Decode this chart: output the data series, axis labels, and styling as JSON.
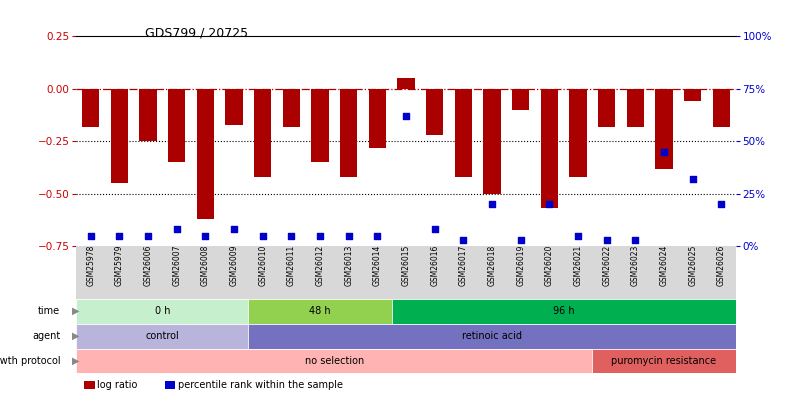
{
  "title": "GDS799 / 20725",
  "samples": [
    "GSM25978",
    "GSM25979",
    "GSM26006",
    "GSM26007",
    "GSM26008",
    "GSM26009",
    "GSM26010",
    "GSM26011",
    "GSM26012",
    "GSM26013",
    "GSM26014",
    "GSM26015",
    "GSM26016",
    "GSM26017",
    "GSM26018",
    "GSM26019",
    "GSM26020",
    "GSM26021",
    "GSM26022",
    "GSM26023",
    "GSM26024",
    "GSM26025",
    "GSM26026"
  ],
  "log_ratio": [
    -0.18,
    -0.45,
    -0.25,
    -0.35,
    -0.62,
    -0.17,
    -0.42,
    -0.18,
    -0.35,
    -0.42,
    -0.28,
    0.05,
    -0.22,
    -0.42,
    -0.5,
    -0.1,
    -0.57,
    -0.42,
    -0.18,
    -0.18,
    -0.38,
    -0.06,
    -0.18
  ],
  "percentile_rank": [
    5,
    5,
    5,
    8,
    5,
    8,
    5,
    5,
    5,
    5,
    5,
    62,
    8,
    3,
    20,
    3,
    20,
    5,
    3,
    3,
    45,
    32,
    20
  ],
  "bar_color": "#aa0000",
  "point_color": "#0000cc",
  "left_ylim": [
    -0.75,
    0.25
  ],
  "right_ylim": [
    0,
    100
  ],
  "left_yticks": [
    -0.75,
    -0.5,
    -0.25,
    0,
    0.25
  ],
  "right_yticks": [
    0,
    25,
    50,
    75,
    100
  ],
  "right_yticklabels": [
    "0%",
    "25%",
    "50%",
    "75%",
    "100%"
  ],
  "hline_y": 0,
  "dotted_lines": [
    -0.25,
    -0.5
  ],
  "time_groups": [
    {
      "label": "0 h",
      "start": 0,
      "end": 6,
      "color": "#c6efce"
    },
    {
      "label": "48 h",
      "start": 6,
      "end": 11,
      "color": "#92d050"
    },
    {
      "label": "96 h",
      "start": 11,
      "end": 23,
      "color": "#00b050"
    }
  ],
  "agent_groups": [
    {
      "label": "control",
      "start": 0,
      "end": 6,
      "color": "#b8b4dc"
    },
    {
      "label": "retinoic acid",
      "start": 6,
      "end": 23,
      "color": "#7472c0"
    }
  ],
  "growth_groups": [
    {
      "label": "no selection",
      "start": 0,
      "end": 18,
      "color": "#ffb3b3"
    },
    {
      "label": "puromycin resistance",
      "start": 18,
      "end": 23,
      "color": "#e06060"
    }
  ],
  "row_labels": [
    "time",
    "agent",
    "growth protocol"
  ],
  "legend_bar_label": "log ratio",
  "legend_point_label": "percentile rank within the sample",
  "background_color": "#ffffff",
  "title_color": "#000000",
  "left_axis_color": "#cc0000",
  "right_axis_color": "#0000cc",
  "xlabel_bg": "#d8d8d8"
}
